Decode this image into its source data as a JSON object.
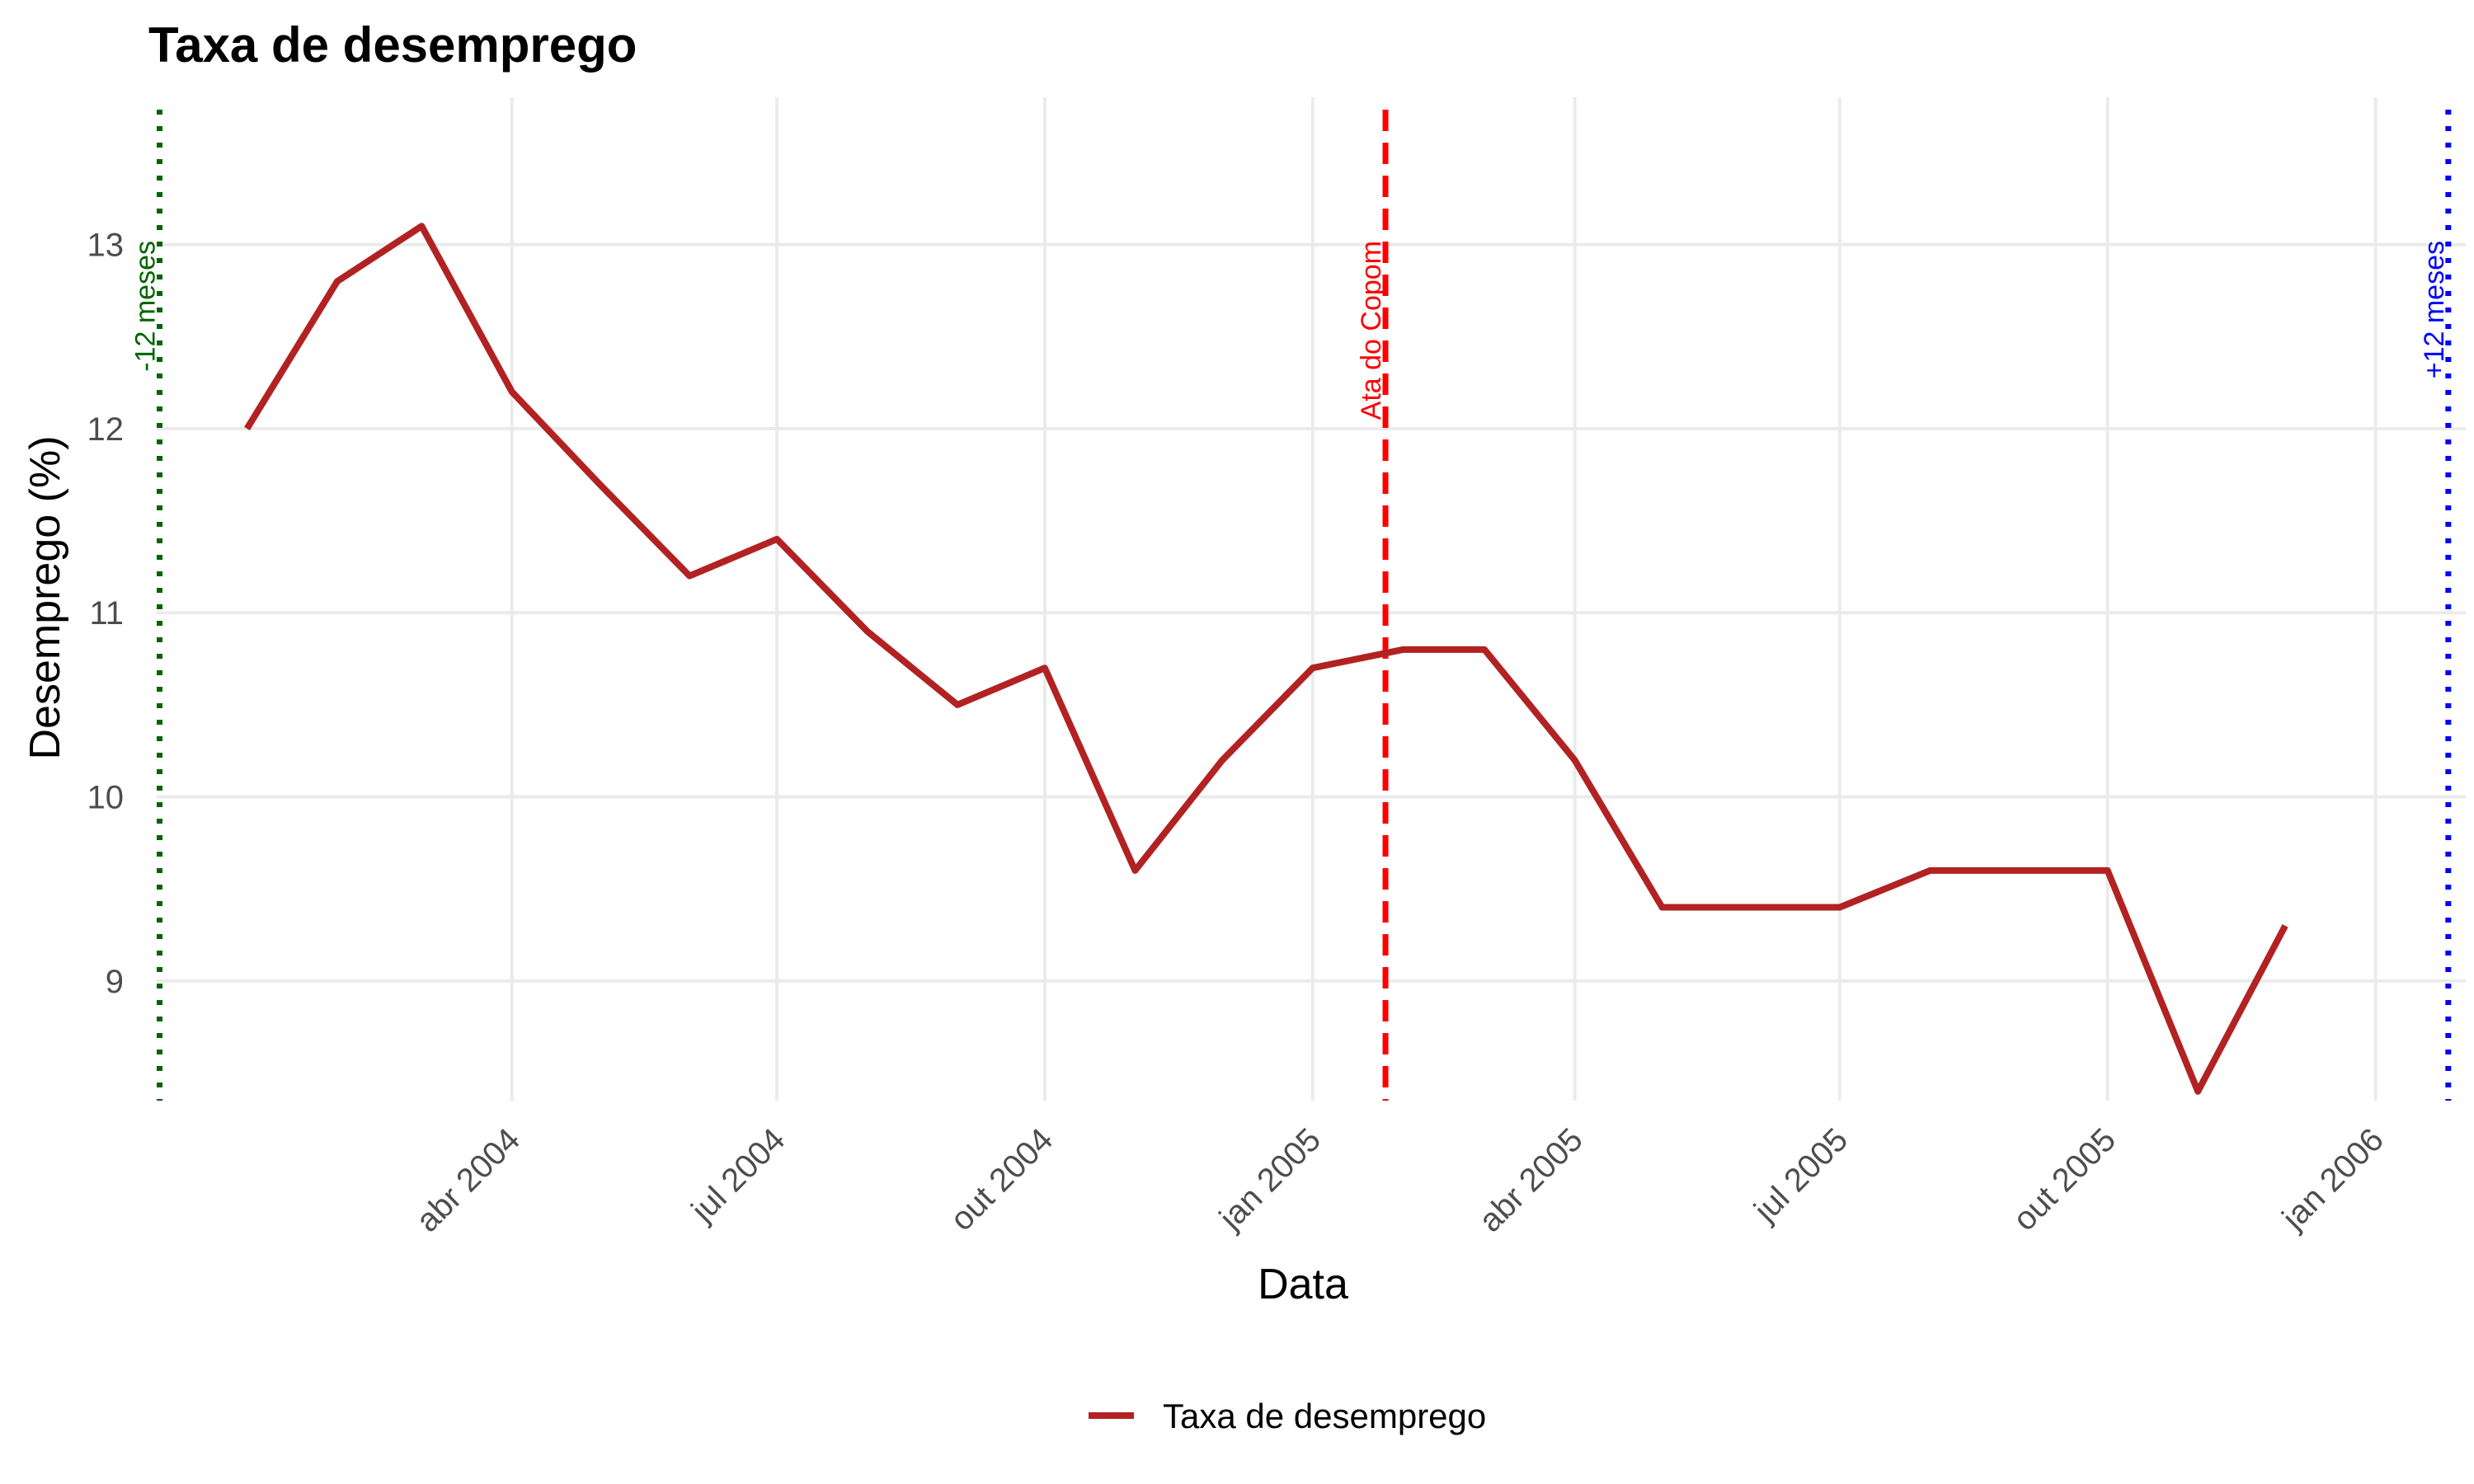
{
  "chart_data": {
    "type": "line",
    "title": "Taxa de desemprego",
    "xlabel": "Data",
    "ylabel": "Desemprego (%)",
    "x_axis_type": "date",
    "xlim": [
      "2003-12-01",
      "2006-02-01"
    ],
    "ylim": [
      8.35,
      13.8
    ],
    "y_ticks": [
      9,
      10,
      11,
      12,
      13
    ],
    "x_ticks": [
      {
        "date": "2004-04-01",
        "label": "abr 2004"
      },
      {
        "date": "2004-07-01",
        "label": "jul 2004"
      },
      {
        "date": "2004-10-01",
        "label": "out 2004"
      },
      {
        "date": "2005-01-01",
        "label": "jan 2005"
      },
      {
        "date": "2005-04-01",
        "label": "abr 2005"
      },
      {
        "date": "2005-07-01",
        "label": "jul 2005"
      },
      {
        "date": "2005-10-01",
        "label": "out 2005"
      },
      {
        "date": "2006-01-01",
        "label": "jan 2006"
      }
    ],
    "grid": true,
    "legend_position": "bottom",
    "series": [
      {
        "name": "Taxa de desemprego",
        "color": "#b22222",
        "points": [
          {
            "x": "2004-01-01",
            "y": 12.0
          },
          {
            "x": "2004-02-01",
            "y": 12.8
          },
          {
            "x": "2004-03-01",
            "y": 13.1
          },
          {
            "x": "2004-04-01",
            "y": 12.2
          },
          {
            "x": "2004-05-01",
            "y": 11.7
          },
          {
            "x": "2004-06-01",
            "y": 11.2
          },
          {
            "x": "2004-07-01",
            "y": 11.4
          },
          {
            "x": "2004-08-01",
            "y": 10.9
          },
          {
            "x": "2004-09-01",
            "y": 10.5
          },
          {
            "x": "2004-10-01",
            "y": 10.7
          },
          {
            "x": "2004-11-01",
            "y": 9.6
          },
          {
            "x": "2004-12-01",
            "y": 10.2
          },
          {
            "x": "2005-01-01",
            "y": 10.7
          },
          {
            "x": "2005-02-01",
            "y": 10.8
          },
          {
            "x": "2005-03-01",
            "y": 10.8
          },
          {
            "x": "2005-04-01",
            "y": 10.2
          },
          {
            "x": "2005-05-01",
            "y": 9.4
          },
          {
            "x": "2005-06-01",
            "y": 9.4
          },
          {
            "x": "2005-07-01",
            "y": 9.4
          },
          {
            "x": "2005-08-01",
            "y": 9.6
          },
          {
            "x": "2005-09-01",
            "y": 9.6
          },
          {
            "x": "2005-10-01",
            "y": 9.6
          },
          {
            "x": "2005-11-01",
            "y": 8.4
          },
          {
            "x": "2005-12-01",
            "y": 9.3
          }
        ]
      }
    ],
    "annotations": [
      {
        "label": "-12 meses",
        "date": "2003-12-02",
        "color": "#006400",
        "style": "dotted"
      },
      {
        "label": "Ata do Copom",
        "date": "2005-01-26",
        "color": "#ff0000",
        "style": "dashed"
      },
      {
        "label": "+12 meses",
        "date": "2006-01-26",
        "color": "#0000ff",
        "style": "dotted"
      }
    ]
  }
}
